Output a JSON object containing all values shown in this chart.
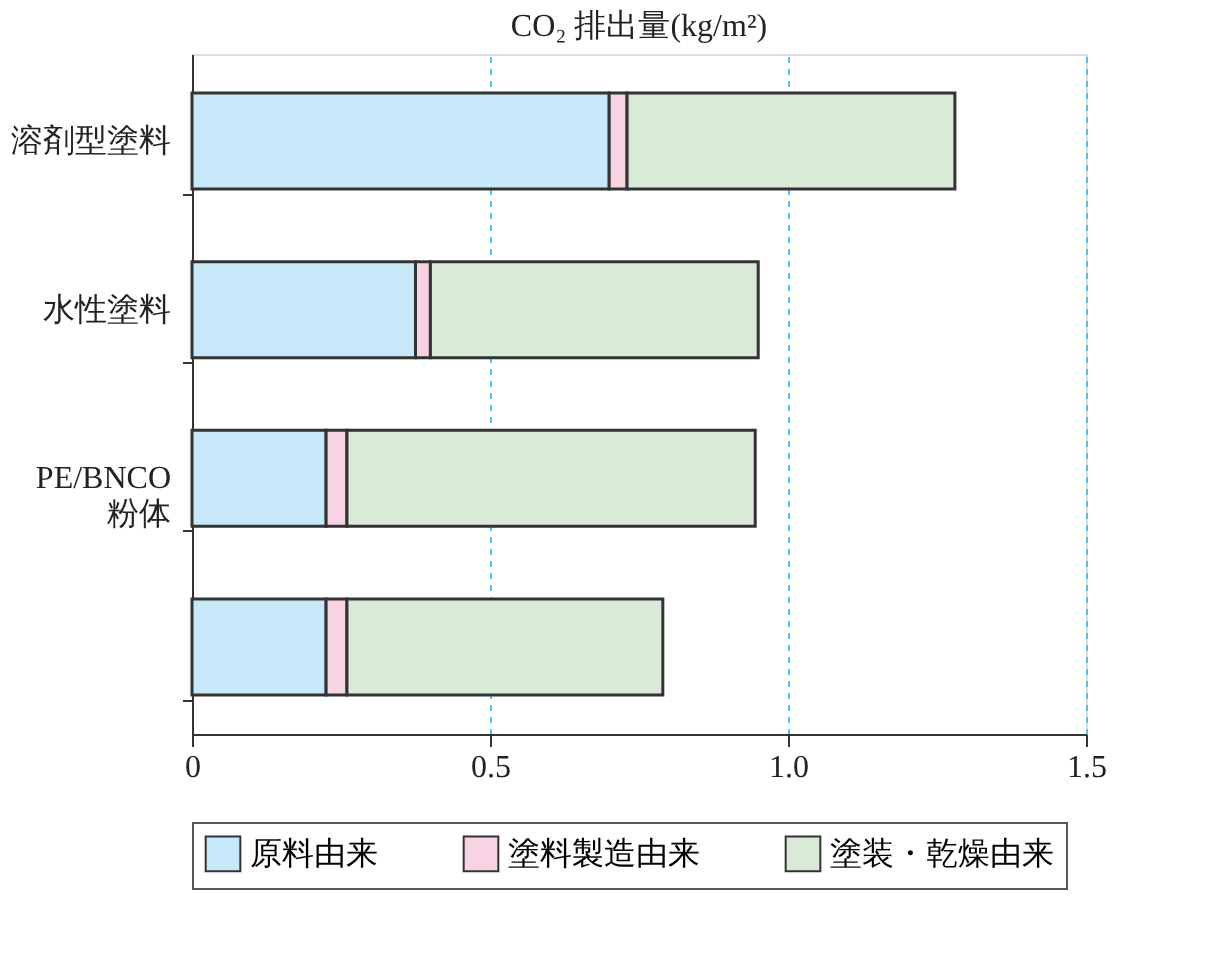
{
  "chart_data": {
    "type": "bar",
    "orientation": "horizontal",
    "stacked": true,
    "title": "CO₂ 排出量(kg/m²)",
    "categories": [
      "溶剤型塗料",
      "水性塗料",
      "PE/BNCO 粉体",
      null
    ],
    "series": [
      {
        "name": "原料由来",
        "color": "#c7e8f8",
        "values": [
          0.7,
          0.375,
          0.225,
          0.225
        ]
      },
      {
        "name": "塗料製造由来",
        "color": "#f8d3e3",
        "values": [
          0.03,
          0.025,
          0.035,
          0.035
        ]
      },
      {
        "name": "塗装・乾燥由来",
        "color": "#d9ebd6",
        "values": [
          0.55,
          0.55,
          0.685,
          0.53
        ]
      }
    ],
    "xlim": [
      0,
      1.5
    ],
    "xticks": [
      0,
      0.5,
      {
        "value": 1.0,
        "label": "1.0"
      },
      1.5
    ],
    "grid": "x",
    "legend": "bottom"
  }
}
